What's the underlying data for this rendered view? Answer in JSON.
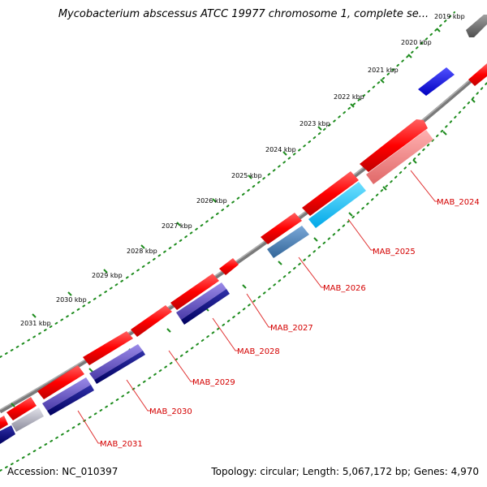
{
  "title": "Mycobacterium abscessus ATCC 19977 chromosome 1, complete se...",
  "footer": {
    "accession": "Accession: NC_010397",
    "summary": "Topology: circular; Length: 5,067,172 bp; Genes: 4,970"
  },
  "ruler_labels": [
    "2019 kbp",
    "2020 kbp",
    "2021 kbp",
    "2022 kbp",
    "2023 kbp",
    "2024 kbp",
    "2025 kbp",
    "2026 kbp",
    "2027 kbp",
    "2028 kbp",
    "2029 kbp",
    "2030 kbp",
    "2031 kbp"
  ],
  "gene_labels": [
    "MAB_2024",
    "MAB_2025",
    "MAB_2026",
    "MAB_2027",
    "MAB_2028",
    "MAB_2029",
    "MAB_2030",
    "MAB_2031"
  ],
  "colors": {
    "backbone": "#8c8c8c",
    "tick": "#1e8c1e",
    "cds_forward": "#ff0000",
    "label": "#d40000",
    "gene_blue": "#0000ee",
    "gene_gray": "#777777",
    "gene_pink": "#f08080",
    "gene_cyan": "#00bfff",
    "gene_steel": "#4682b4",
    "gene_navy": "#000080",
    "gene_slate": "#6a5acd",
    "gene_silver": "#b8b8c8"
  }
}
